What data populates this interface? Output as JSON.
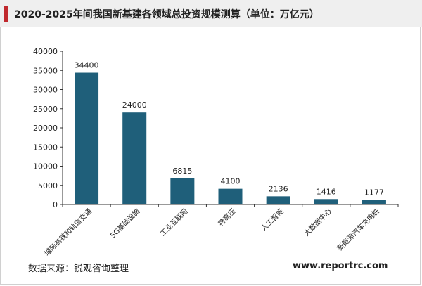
{
  "title": "2020-2025年间我国新基建各领域总投资规模测算（单位：万亿元）",
  "source": "数据来源：锐观咨询整理",
  "website": "www.reportrc.com",
  "colors": {
    "bar": "#1f5f7a",
    "accent": "#c0282d"
  },
  "chart_data": {
    "type": "bar",
    "categories": [
      "城际高铁和轨道交通",
      "5G基础设施",
      "工业互联网",
      "特高压",
      "人工智能",
      "大数据中心",
      "新能源汽车充电桩"
    ],
    "values": [
      34400,
      24000,
      6815,
      4100,
      2136,
      1416,
      1177
    ],
    "data_labels": [
      "34400",
      "24000",
      "6815",
      "4100",
      "2136",
      "1416",
      "1177"
    ],
    "yticks": [
      0,
      5000,
      10000,
      15000,
      20000,
      25000,
      30000,
      35000,
      40000
    ],
    "ylim": [
      0,
      40000
    ],
    "grid": false,
    "legend": "none"
  }
}
